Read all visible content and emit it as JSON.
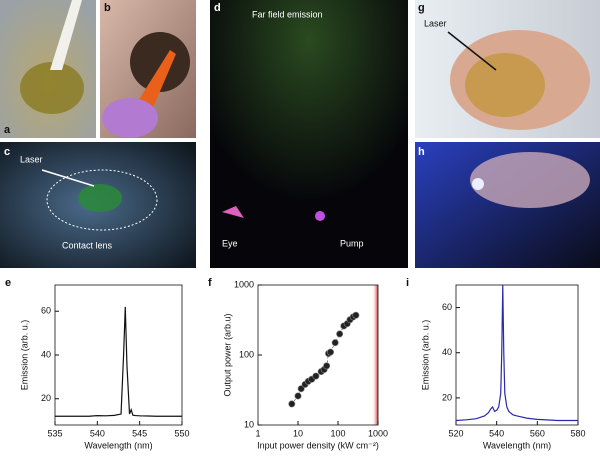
{
  "panels": [
    {
      "letter": "a"
    },
    {
      "letter": "b"
    },
    {
      "letter": "c",
      "labels": [
        "Laser",
        "Contact lens"
      ]
    },
    {
      "letter": "d",
      "labels": [
        "Far field emission",
        "Eye",
        "Pump"
      ]
    },
    {
      "letter": "g",
      "labels": [
        "Laser"
      ]
    },
    {
      "letter": "h"
    }
  ],
  "chart_data": [
    {
      "type": "line",
      "panel": "e",
      "xlabel": "Wavelength (nm)",
      "ylabel": "Emission (arb. u.)",
      "x": [
        535,
        536,
        537,
        538,
        539,
        540,
        541,
        542,
        542.8,
        543.1,
        543.3,
        543.5,
        543.8,
        544,
        544.2,
        544.5,
        545,
        546,
        547,
        548,
        549,
        550
      ],
      "values": [
        12,
        12,
        12,
        12,
        12,
        12.3,
        12.2,
        12.4,
        13,
        40,
        62,
        35,
        13,
        15,
        12.5,
        12.3,
        12.2,
        12.1,
        12,
        12,
        12,
        12
      ],
      "color": "#111111",
      "xlim": [
        535,
        550
      ],
      "ylim": [
        8,
        72
      ],
      "xticks": [
        535,
        540,
        545,
        550
      ],
      "yticks": [
        20,
        40,
        60
      ]
    },
    {
      "type": "scatter",
      "panel": "f",
      "xlabel": "Input power density (kW cm⁻²)",
      "ylabel": "Output power (arb.u)",
      "x": [
        7,
        10,
        12,
        15,
        18,
        22,
        28,
        38,
        45,
        52,
        58,
        65,
        85,
        110,
        140,
        170,
        200,
        240,
        280
      ],
      "values": [
        20,
        26,
        33,
        38,
        42,
        45,
        50,
        58,
        62,
        70,
        105,
        110,
        150,
        200,
        260,
        280,
        320,
        350,
        370
      ],
      "color": "#222222",
      "xlim": [
        1,
        1000
      ],
      "ylim": [
        10,
        1000
      ],
      "xticks": [
        1,
        10,
        100,
        1000
      ],
      "yticks": [
        10,
        100,
        1000
      ],
      "xscale": "log",
      "yscale": "log",
      "highlight_xrange": [
        700,
        1000
      ],
      "highlight_color": "#e03030"
    },
    {
      "type": "line",
      "panel": "i",
      "xlabel": "Wavelength (nm)",
      "ylabel": "Emission (arb. u.)",
      "x": [
        520,
        525,
        530,
        534,
        536,
        537,
        538,
        539,
        540,
        541,
        542,
        542.5,
        543,
        543.5,
        544,
        545,
        546,
        548,
        550,
        555,
        560,
        570,
        580
      ],
      "values": [
        10,
        10.3,
        10.8,
        12,
        13.5,
        15,
        16,
        14,
        14.5,
        16,
        22,
        40,
        70,
        40,
        22,
        16,
        14,
        12.5,
        12,
        11,
        10.5,
        10,
        10
      ],
      "color": "#2a2aa8",
      "xlim": [
        520,
        580
      ],
      "ylim": [
        8,
        70
      ],
      "xticks": [
        520,
        540,
        560,
        580
      ],
      "yticks": [
        20,
        40,
        60
      ]
    }
  ]
}
